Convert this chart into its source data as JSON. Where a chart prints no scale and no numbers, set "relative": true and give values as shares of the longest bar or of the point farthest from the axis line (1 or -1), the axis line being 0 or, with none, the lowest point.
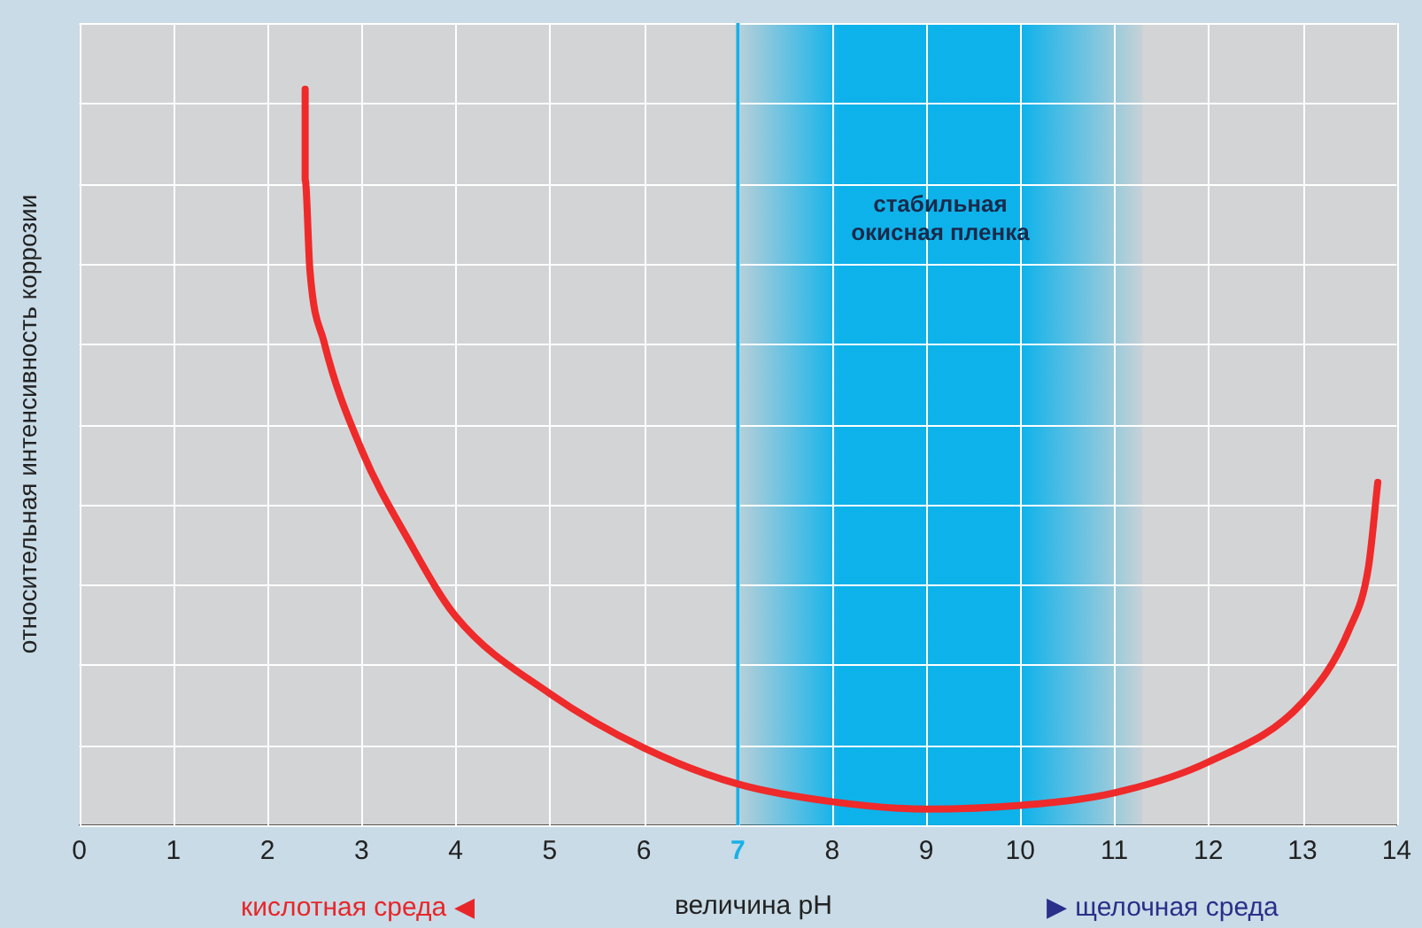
{
  "chart_data": {
    "type": "line",
    "relative": true,
    "xlabel": "величина pH",
    "ylabel": "относительная интенсивность коррозии",
    "xlim": [
      0,
      14
    ],
    "xticks": [
      0,
      1,
      2,
      3,
      4,
      5,
      6,
      7,
      8,
      9,
      10,
      11,
      12,
      13,
      14
    ],
    "grid": true,
    "legend": false,
    "marker": "none",
    "line_style": "solid",
    "series": [
      {
        "color": "#ee2a2a",
        "x": [
          2.4,
          2.4,
          2.45,
          2.6,
          3,
          3.5,
          4,
          5,
          6,
          7,
          8,
          9,
          10,
          11,
          12,
          13,
          13.5,
          13.7,
          13.8
        ],
        "values": [
          1.0,
          0.877,
          0.755,
          0.657,
          0.51,
          0.387,
          0.284,
          0.179,
          0.105,
          0.056,
          0.032,
          0.022,
          0.027,
          0.044,
          0.086,
          0.167,
          0.267,
          0.35,
          0.466
        ]
      }
    ],
    "ref_lines": [
      {
        "axis": "x",
        "value": 7,
        "color": "#1ab0e6"
      }
    ],
    "bands": [
      {
        "axis": "x",
        "from": 7,
        "to": 11.3,
        "label": "стабильная окисная пленка",
        "color": "#00b0ec"
      }
    ],
    "annotations": [
      "кислотная среда ◀",
      "▶ щелочная среда"
    ]
  }
}
